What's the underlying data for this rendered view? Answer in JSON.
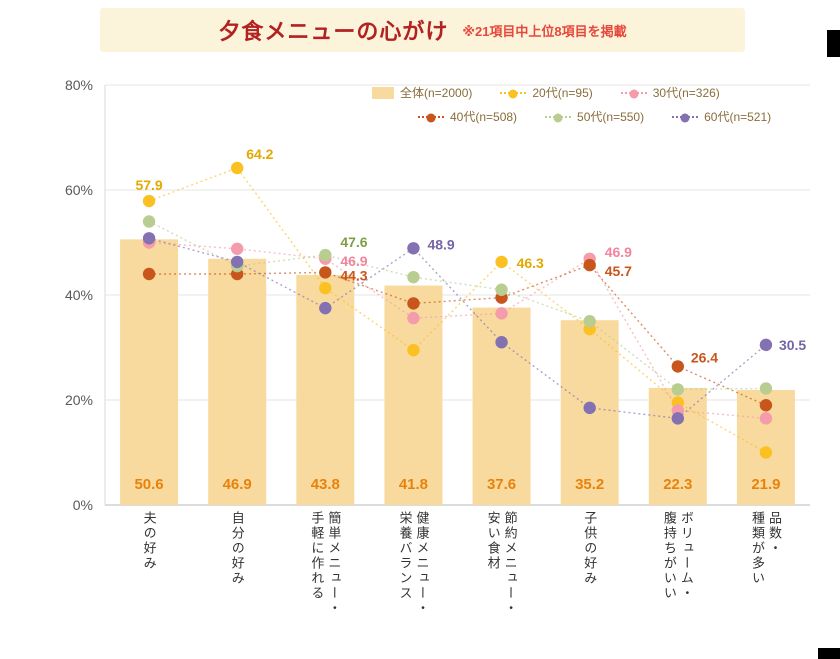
{
  "header": {
    "title": "夕食メニューの心がけ",
    "note": "※21項目中上位8項目を掲載",
    "banner_bg": "#FCF4DA",
    "title_color": "#B22222",
    "note_color": "#E6483C"
  },
  "chart_data": {
    "type": "bar+scatter",
    "title": "夕食メニューの心がけ",
    "xlabel": "",
    "ylabel": "",
    "ylim": [
      0,
      80
    ],
    "y_axis": {
      "min": 0,
      "max": 80,
      "ticks": [
        0,
        20,
        40,
        60,
        80
      ],
      "tick_suffix": "%"
    },
    "grid": true,
    "legend_position": "top",
    "legend_text_color": "#8a6d3b",
    "categories": [
      {
        "lines": [
          "夫の好み"
        ]
      },
      {
        "lines": [
          "自分の好み"
        ]
      },
      {
        "lines": [
          "簡単メニュー・",
          "手軽に作れる"
        ]
      },
      {
        "lines": [
          "健康メニュー・",
          "栄養バランス"
        ]
      },
      {
        "lines": [
          "節約メニュー・",
          "安い食材"
        ]
      },
      {
        "lines": [
          "子供の好み"
        ]
      },
      {
        "lines": [
          "ボリューム・",
          "腹持ちがいい"
        ]
      },
      {
        "lines": [
          "品数・",
          "種類が多い"
        ]
      }
    ],
    "bar_series": {
      "name": "全体(n=2000)",
      "color": "#F8DA9E",
      "label_color": "#E8820C",
      "values": [
        50.6,
        46.9,
        43.8,
        41.8,
        37.6,
        35.2,
        22.3,
        21.9
      ]
    },
    "dot_series": [
      {
        "name": "20代(n=95)",
        "color": "#FBC021",
        "label_color": "#E3A900",
        "values": [
          57.9,
          64.2,
          41.3,
          29.5,
          46.3,
          33.5,
          19.5,
          10.0
        ],
        "labels": [
          57.9,
          64.2,
          null,
          null,
          46.3,
          null,
          null,
          null
        ]
      },
      {
        "name": "30代(n=326)",
        "color": "#F49BAC",
        "label_color": "#F2849E",
        "values": [
          50.0,
          48.8,
          46.9,
          35.6,
          36.5,
          46.9,
          18.0,
          16.5
        ],
        "labels": [
          null,
          null,
          46.9,
          null,
          null,
          46.9,
          null,
          null
        ]
      },
      {
        "name": "40代(n=508)",
        "color": "#C8551B",
        "label_color": "#C8551B",
        "values": [
          44.0,
          44.0,
          44.3,
          38.4,
          39.5,
          45.7,
          26.4,
          19.0
        ],
        "labels": [
          null,
          null,
          44.3,
          null,
          null,
          45.7,
          26.4,
          null
        ]
      },
      {
        "name": "50代(n=550)",
        "color": "#B9CD90",
        "label_color": "#7E9E45",
        "values": [
          54.0,
          45.5,
          47.6,
          43.4,
          41.0,
          35.0,
          22.0,
          22.2
        ],
        "labels": [
          null,
          null,
          47.6,
          null,
          null,
          null,
          null,
          null
        ]
      },
      {
        "name": "60代(n=521)",
        "color": "#8371B1",
        "label_color": "#7565A8",
        "values": [
          50.8,
          46.3,
          37.5,
          48.9,
          31.0,
          18.5,
          16.5,
          30.5
        ],
        "labels": [
          null,
          null,
          null,
          48.9,
          null,
          null,
          null,
          30.5
        ]
      }
    ],
    "legend_rows": [
      [
        "全体(n=2000)",
        "20代(n=95)",
        "30代(n=326)"
      ],
      [
        "40代(n=508)",
        "50代(n=550)",
        "60代(n=521)"
      ]
    ]
  }
}
